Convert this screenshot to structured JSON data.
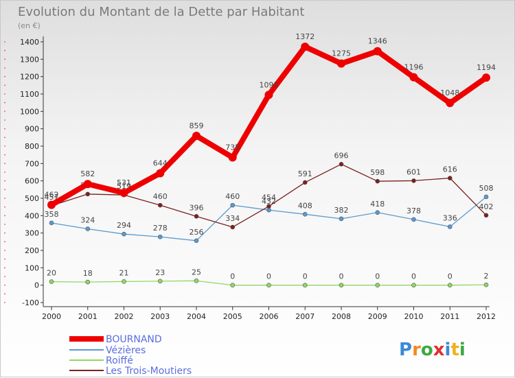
{
  "chart_data": {
    "type": "line",
    "title": "Evolution du Montant de la Dette par Habitant",
    "subtitle": "(en €)",
    "x": [
      "2000",
      "2001",
      "2002",
      "2003",
      "2004",
      "2005",
      "2006",
      "2007",
      "2008",
      "2009",
      "2010",
      "2011",
      "2012"
    ],
    "ylim": [
      -100,
      1400
    ],
    "yticks": [
      -100,
      0,
      100,
      200,
      300,
      400,
      500,
      600,
      700,
      800,
      900,
      1000,
      1100,
      1200,
      1300,
      1400
    ],
    "grid": false,
    "legend_position": "bottom-left",
    "series": [
      {
        "name": "BOURNAND",
        "color": "#ee0000",
        "values": [
          462,
          582,
          531,
          644,
          859,
          735,
          1095,
          1372,
          1275,
          1346,
          1196,
          1048,
          1194
        ]
      },
      {
        "name": "Vézières",
        "color": "#5a9ad0",
        "values": [
          358,
          324,
          294,
          278,
          256,
          460,
          432,
          408,
          382,
          418,
          378,
          336,
          508
        ]
      },
      {
        "name": "Roiffé",
        "color": "#90d860",
        "values": [
          20,
          18,
          21,
          23,
          25,
          0,
          0,
          0,
          0,
          0,
          0,
          0,
          2
        ]
      },
      {
        "name": "Les Trois-Moutiers",
        "color": "#7a2020",
        "values": [
          457,
          524,
          519,
          460,
          396,
          334,
          454,
          591,
          696,
          598,
          601,
          616,
          402
        ]
      }
    ]
  },
  "brand": {
    "letters": [
      "P",
      "r",
      "o",
      "x",
      "i",
      "t",
      "i"
    ],
    "colors": [
      "#3a8ad8",
      "#f08a20",
      "#3aaa40",
      "#e03030",
      "#3a8ad8",
      "#f0b020",
      "#3aaa40"
    ]
  }
}
